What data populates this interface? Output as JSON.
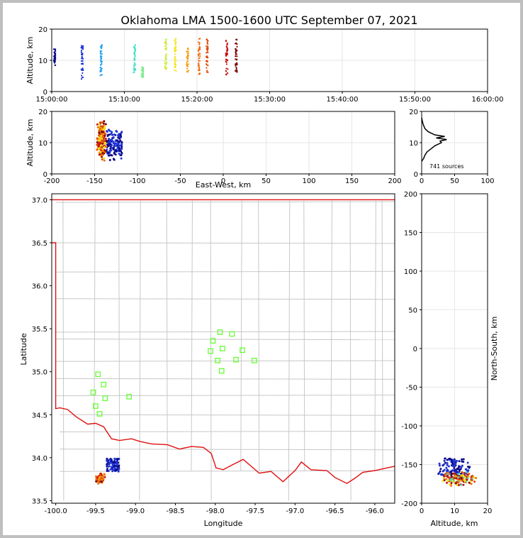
{
  "chart_data": {
    "title": "Oklahoma LMA 1500-1600 UTC September 07, 2021",
    "panels": [
      {
        "type": "scatter",
        "panel": "time-altitude",
        "ylabel": "Altitude, km",
        "xlabel": "",
        "xlim": [
          "15:00:00",
          "16:00:00"
        ],
        "ylim": [
          0,
          20
        ],
        "x_ticks": [
          "15:00:00",
          "15:10:00",
          "15:20:00",
          "15:30:00",
          "15:40:00",
          "15:50:00",
          "16:00:00"
        ],
        "y_ticks": [
          "0",
          "10",
          "20"
        ],
        "grid": true,
        "color_scale": "time (blue to red)",
        "series": [
          {
            "time_min": 0.4,
            "alt_min": 8,
            "alt_max": 14,
            "color": "#0a0a8a"
          },
          {
            "time_min": 4.2,
            "alt_min": 4,
            "alt_max": 15,
            "color": "#1f35d6"
          },
          {
            "time_min": 6.8,
            "alt_min": 5,
            "alt_max": 15,
            "color": "#1ea3f0"
          },
          {
            "time_min": 11.4,
            "alt_min": 6,
            "alt_max": 15,
            "color": "#3fe0c2"
          },
          {
            "time_min": 12.5,
            "alt_min": 4.5,
            "alt_max": 8,
            "color": "#7fee8e"
          },
          {
            "time_min": 15.7,
            "alt_min": 7,
            "alt_max": 17,
            "color": "#c8f03c"
          },
          {
            "time_min": 17.0,
            "alt_min": 6,
            "alt_max": 18,
            "color": "#f5e51a"
          },
          {
            "time_min": 18.7,
            "alt_min": 6,
            "alt_max": 14,
            "color": "#f7a012"
          },
          {
            "time_min": 20.3,
            "alt_min": 5.5,
            "alt_max": 17,
            "color": "#f26d0f"
          },
          {
            "time_min": 21.4,
            "alt_min": 6,
            "alt_max": 17,
            "color": "#e04a0a"
          },
          {
            "time_min": 24.1,
            "alt_min": 5,
            "alt_max": 17,
            "color": "#c8100c"
          },
          {
            "time_min": 25.4,
            "alt_min": 6,
            "alt_max": 17,
            "color": "#7a0000"
          }
        ]
      },
      {
        "type": "scatter",
        "panel": "east-west-altitude",
        "xlabel": "East-West, km",
        "ylabel": "Altitude, km",
        "xlim": [
          -200,
          200
        ],
        "ylim": [
          0,
          20
        ],
        "x_ticks": [
          "-200",
          "-150",
          "-100",
          "-50",
          "0",
          "50",
          "100",
          "150",
          "200"
        ],
        "y_ticks": [
          "0",
          "10",
          "20"
        ],
        "grid": true,
        "clusters": [
          {
            "x_min": -148,
            "x_max": -136,
            "alt_min": 4,
            "alt_max": 18,
            "color": "#b81010"
          },
          {
            "x_min": -136,
            "x_max": -118,
            "alt_min": 4,
            "alt_max": 15,
            "color": "#1f35d6"
          }
        ]
      },
      {
        "type": "line",
        "panel": "altitude-histogram",
        "xlim": [
          0,
          100
        ],
        "ylim": [
          0,
          20
        ],
        "x_ticks": [
          "0",
          "50",
          "100"
        ],
        "y_ticks": [
          "0",
          "10",
          "20"
        ],
        "annotation": "741 sources",
        "profile": [
          [
            0,
            4
          ],
          [
            3,
            5
          ],
          [
            5,
            6
          ],
          [
            8,
            7
          ],
          [
            14,
            8
          ],
          [
            20,
            9
          ],
          [
            30,
            10
          ],
          [
            28,
            10.5
          ],
          [
            38,
            11
          ],
          [
            22,
            11.5
          ],
          [
            35,
            12
          ],
          [
            20,
            12.5
          ],
          [
            10,
            13.5
          ],
          [
            5,
            14.5
          ],
          [
            2,
            16
          ],
          [
            1,
            17
          ],
          [
            0,
            18
          ]
        ]
      },
      {
        "type": "map",
        "panel": "plan-view",
        "xlabel": "Longitude",
        "ylabel": "Latitude",
        "xlim": [
          -100.05,
          -95.75
        ],
        "ylim": [
          33.47,
          37.07
        ],
        "x_ticks": [
          "-100.0",
          "-99.5",
          "-99.0",
          "-98.5",
          "-98.0",
          "-97.5",
          "-97.0",
          "-96.5",
          "-96.0"
        ],
        "y_ticks": [
          "33.5",
          "34.0",
          "34.5",
          "35.0",
          "35.5",
          "36.0",
          "36.5",
          "37.0"
        ],
        "stations_lonlat": [
          [
            -99.47,
            34.97
          ],
          [
            -99.4,
            34.85
          ],
          [
            -99.53,
            34.76
          ],
          [
            -99.38,
            34.69
          ],
          [
            -99.5,
            34.6
          ],
          [
            -99.45,
            34.51
          ],
          [
            -99.08,
            34.71
          ],
          [
            -97.94,
            35.46
          ],
          [
            -97.79,
            35.44
          ],
          [
            -98.03,
            35.36
          ],
          [
            -97.91,
            35.27
          ],
          [
            -98.06,
            35.24
          ],
          [
            -97.66,
            35.25
          ],
          [
            -97.97,
            35.13
          ],
          [
            -97.74,
            35.14
          ],
          [
            -97.51,
            35.13
          ],
          [
            -97.92,
            35.01
          ]
        ],
        "lightning_clusters": [
          {
            "lon_min": -99.36,
            "lon_max": -99.2,
            "lat_min": 33.84,
            "lat_max": 33.99,
            "color": "#1f35d6"
          },
          {
            "lon_min": -99.5,
            "lon_max": -99.38,
            "lat_min": 33.69,
            "lat_max": 33.83,
            "color": "#c8100c"
          }
        ]
      },
      {
        "type": "scatter",
        "panel": "altitude-north-south",
        "xlabel": "Altitude, km",
        "ylabel": "North-South, km",
        "xlim": [
          0,
          20
        ],
        "ylim": [
          -200,
          200
        ],
        "x_ticks": [
          "0",
          "10",
          "20"
        ],
        "y_ticks": [
          "-200",
          "-150",
          "-100",
          "-50",
          "0",
          "50",
          "100",
          "150",
          "200"
        ],
        "grid": true,
        "clusters": [
          {
            "alt_min": 4,
            "alt_max": 15,
            "ns_min": -165,
            "ns_max": -142,
            "color": "#1f35d6"
          },
          {
            "alt_min": 5,
            "alt_max": 17,
            "ns_min": -178,
            "ns_max": -158,
            "color": "#c8100c"
          }
        ]
      }
    ]
  }
}
